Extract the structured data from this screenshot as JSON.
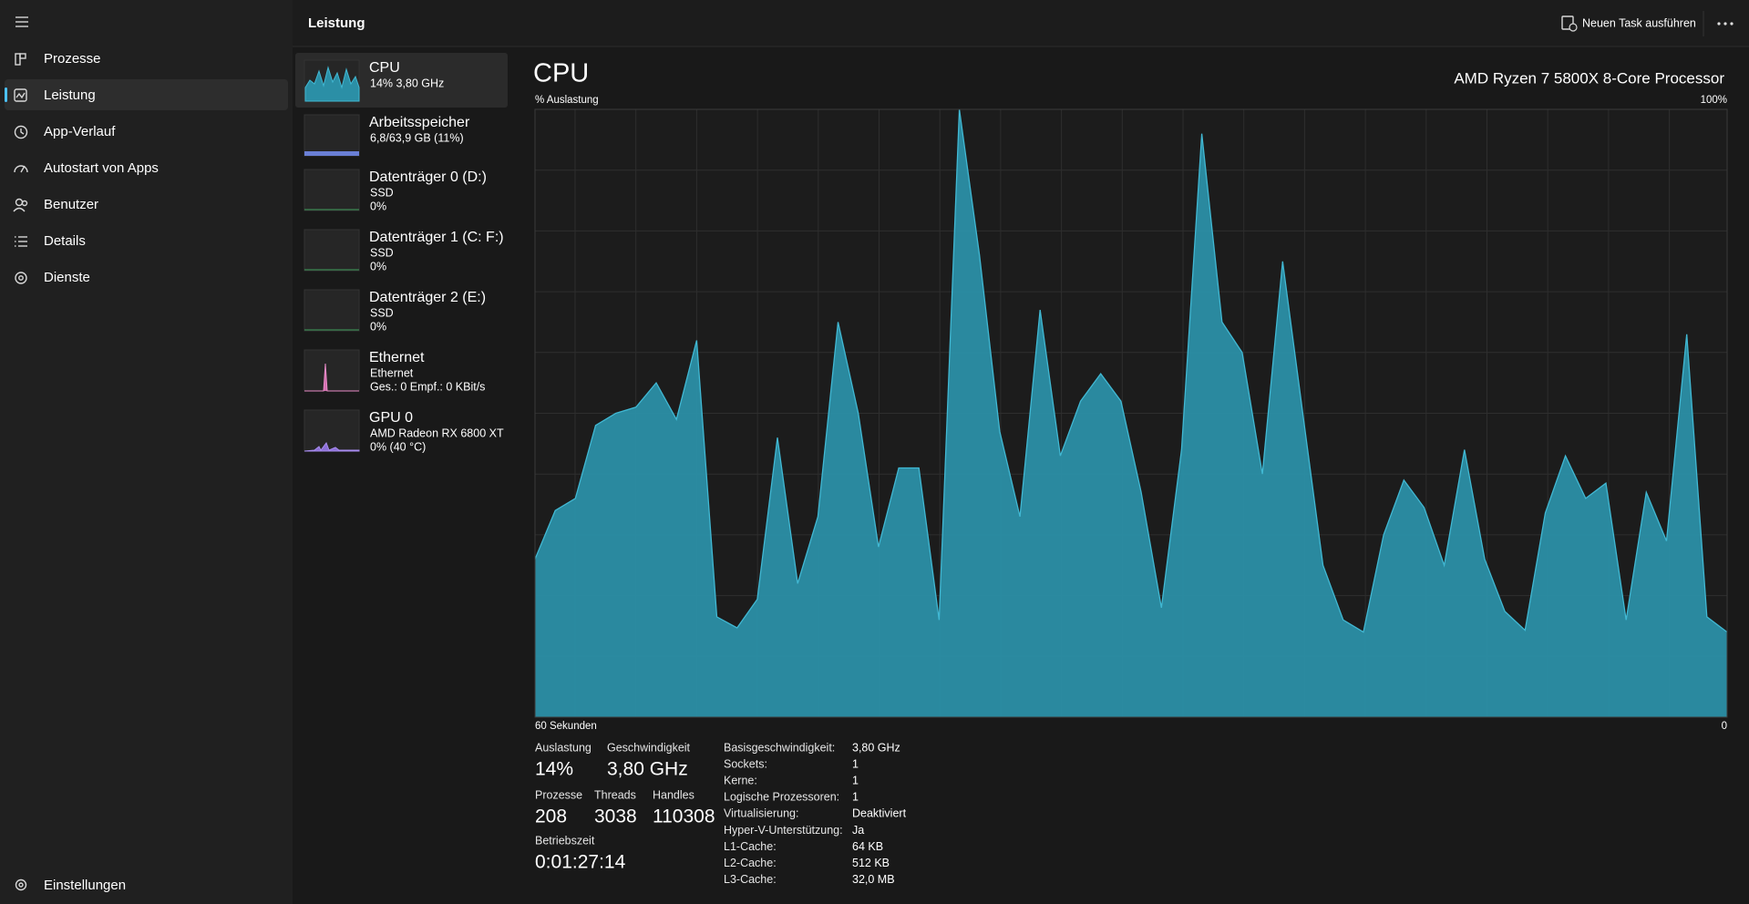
{
  "header": {
    "title": "Leistung",
    "new_task": "Neuen Task ausführen"
  },
  "nav": {
    "items": [
      "Prozesse",
      "Leistung",
      "App-Verlauf",
      "Autostart von Apps",
      "Benutzer",
      "Details",
      "Dienste"
    ],
    "settings": "Einstellungen"
  },
  "resources": [
    {
      "name": "CPU",
      "lines": [
        "14% 3,80 GHz"
      ]
    },
    {
      "name": "Arbeitsspeicher",
      "lines": [
        "6,8/63,9 GB (11%)"
      ]
    },
    {
      "name": "Datenträger 0 (D:)",
      "lines": [
        "SSD",
        "0%"
      ]
    },
    {
      "name": "Datenträger 1 (C: F:)",
      "lines": [
        "SSD",
        "0%"
      ]
    },
    {
      "name": "Datenträger 2 (E:)",
      "lines": [
        "SSD",
        "0%"
      ]
    },
    {
      "name": "Ethernet",
      "lines": [
        "Ethernet",
        "Ges.: 0 Empf.: 0 KBit/s"
      ]
    },
    {
      "name": "GPU 0",
      "lines": [
        "AMD Radeon RX 6800 XT",
        "0%  (40 °C)"
      ]
    }
  ],
  "chart_data": {
    "type": "area",
    "title": "CPU",
    "subtitle": "AMD Ryzen 7 5800X 8-Core Processor",
    "ylabel": "% Auslastung",
    "ylim": [
      0,
      100
    ],
    "yticks": [
      {
        "value": 100,
        "label": "100%"
      }
    ],
    "xlim": [
      60,
      0
    ],
    "xticks": [
      {
        "value": 60,
        "label": "60 Sekunden"
      },
      0
    ],
    "color": "#2b8fa6",
    "line_color": "#41b8d3",
    "values": [
      26,
      34,
      36,
      48,
      50,
      51,
      55,
      49,
      62,
      16.5,
      14.7,
      19.4,
      46,
      22,
      33,
      65,
      50,
      28,
      41,
      41,
      16,
      100,
      76,
      47,
      33,
      67,
      43,
      52,
      56.5,
      52,
      37,
      18,
      44,
      96,
      65,
      60,
      40,
      75,
      50,
      25,
      16,
      14,
      30,
      39,
      34.5,
      25,
      44,
      26,
      17.4,
      14.3,
      33.6,
      43,
      36,
      38.5,
      16,
      37,
      29,
      63,
      16.5,
      14
    ]
  },
  "stats": {
    "primary": [
      {
        "label": "Auslastung",
        "value": "14%"
      },
      {
        "label": "Geschwindigkeit",
        "value": "3,80 GHz"
      },
      {
        "label": "Prozesse",
        "value": 208
      },
      {
        "label": "Threads",
        "value": 3038
      },
      {
        "label": "Handles",
        "value": 110308
      },
      {
        "label": "Betriebszeit",
        "value": "0:01:27:14"
      }
    ],
    "details": [
      [
        "Basisgeschwindigkeit:",
        "3,80 GHz"
      ],
      [
        "Sockets:",
        "1"
      ],
      [
        "Kerne:",
        "1"
      ],
      [
        "Logische Prozessoren:",
        "1"
      ],
      [
        "Virtualisierung:",
        "Deaktiviert"
      ],
      [
        "Hyper-V-Unterstützung:",
        "Ja"
      ],
      [
        "L1-Cache:",
        "64 KB"
      ],
      [
        "L2-Cache:",
        "512 KB"
      ],
      [
        "L3-Cache:",
        "32,0 MB"
      ]
    ]
  }
}
